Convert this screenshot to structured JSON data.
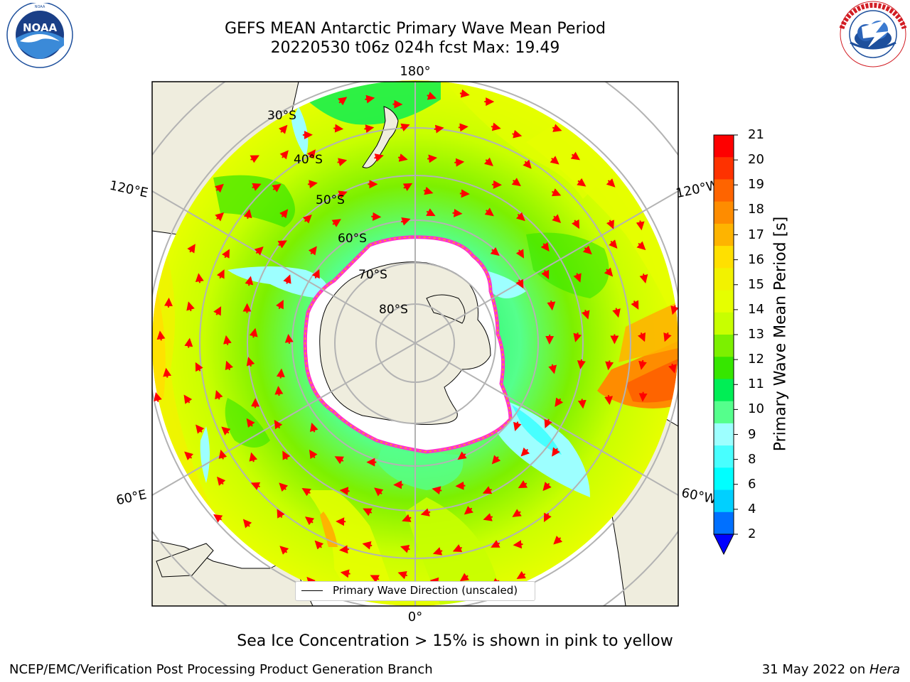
{
  "header": {
    "title_line1": "GEFS MEAN Antarctic Primary Wave Mean Period",
    "title_line2": "20220530 t06z 024h fcst   Max: 19.49"
  },
  "logos": {
    "left": {
      "text": "NOAA",
      "ring_text": "NATIONAL OCEANIC AND ATMOSPHERIC ADMINISTRATION",
      "icon": "noaa-logo-icon",
      "color": "#1d4f9c"
    },
    "right": {
      "ring_text": "NATIONAL WEATHER SERVICE",
      "icon": "nws-logo-icon",
      "color": "#d21d24"
    }
  },
  "map": {
    "lon_labels": {
      "top": "180°",
      "bottom": "0°",
      "upper_left": "120°E",
      "upper_right": "120°W",
      "lower_left": "60°E",
      "lower_right": "60°W"
    },
    "lat_labels": [
      "30°S",
      "40°S",
      "50°S",
      "60°S",
      "70°S",
      "80°S"
    ],
    "legend": {
      "label": "Primary Wave Direction (unscaled)"
    },
    "land_color": "#efedde",
    "ice_color": "#ffffff",
    "arrow_color": "#ff0000"
  },
  "colorbar": {
    "label": "Primary Wave Mean Period [s]",
    "ticks": [
      "21",
      "20",
      "19",
      "18",
      "17",
      "16",
      "15",
      "14",
      "13",
      "12",
      "11",
      "10",
      "9",
      "8",
      "6",
      "4",
      "2"
    ],
    "colors": [
      "#fe0000",
      "#fe3200",
      "#fe6400",
      "#fe8c00",
      "#feb400",
      "#ffe000",
      "#f2f200",
      "#e6ff00",
      "#c8ff00",
      "#7cf000",
      "#36e600",
      "#00ee55",
      "#55ff8c",
      "#9dffff",
      "#48ffff",
      "#00ffff",
      "#00d0ff",
      "#0070ff"
    ],
    "extend_color": "#0000ff"
  },
  "captions": {
    "sea_ice_note": "Sea Ice Concentration > 15% is shown in pink to yellow",
    "credit": "NCEP/EMC/Verification Post Processing Product Generation Branch",
    "date": "31 May 2022 on ",
    "host": "Hera"
  }
}
